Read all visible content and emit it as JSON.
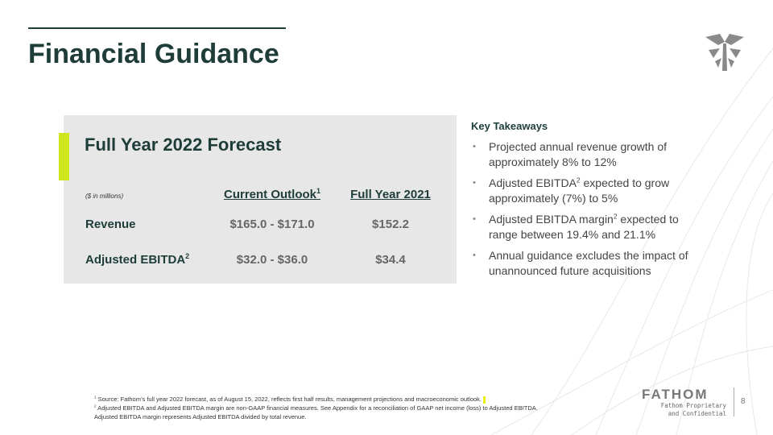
{
  "header": {
    "title": "Financial Guidance"
  },
  "panel": {
    "title": "Full Year 2022 Forecast",
    "table": {
      "unit": "($ in millions)",
      "columns": [
        {
          "text": "Current Outlook",
          "sup": "1"
        },
        {
          "text": "Full Year 2021"
        }
      ],
      "rows": [
        {
          "label": "Revenue",
          "cells": [
            "$165.0 - $171.0",
            "$152.2"
          ]
        },
        {
          "label": "Adjusted EBITDA",
          "sup": "2",
          "cells": [
            "$32.0 - $36.0",
            "$34.4"
          ]
        }
      ]
    }
  },
  "takeaways": {
    "heading": "Key Takeaways",
    "bullets": [
      {
        "text": "Projected annual revenue growth of approximately 8% to 12%"
      },
      {
        "text": "Adjusted EBITDA",
        "sup": "2",
        "rest": " expected to grow approximately (7%) to 5%"
      },
      {
        "text": "Adjusted EBITDA margin",
        "sup": "2",
        "rest": " expected to range between 19.4% and 21.1%"
      },
      {
        "text": "Annual guidance excludes the impact of unannounced future acquisitions"
      }
    ]
  },
  "footnotes": [
    {
      "mark": "1",
      "text": " Source: Fathom’s full year 2022 forecast, as of August 15, 2022, reflects first half results, management projections and macroeconomic outlook."
    },
    {
      "mark": "2",
      "text": " Adjusted EBITDA and Adjusted EBITDA margin are non-GAAP financial measures. See Appendix for a reconciliation of GAAP net income (loss) to Adjusted EBITDA."
    },
    {
      "text": "Adjusted EBITDA margin represents Adjusted EBITDA divided by total revenue."
    }
  ],
  "footer": {
    "logo": "FATHOM",
    "confidential": "Fathom Proprietary and Confidential",
    "page": "8"
  }
}
